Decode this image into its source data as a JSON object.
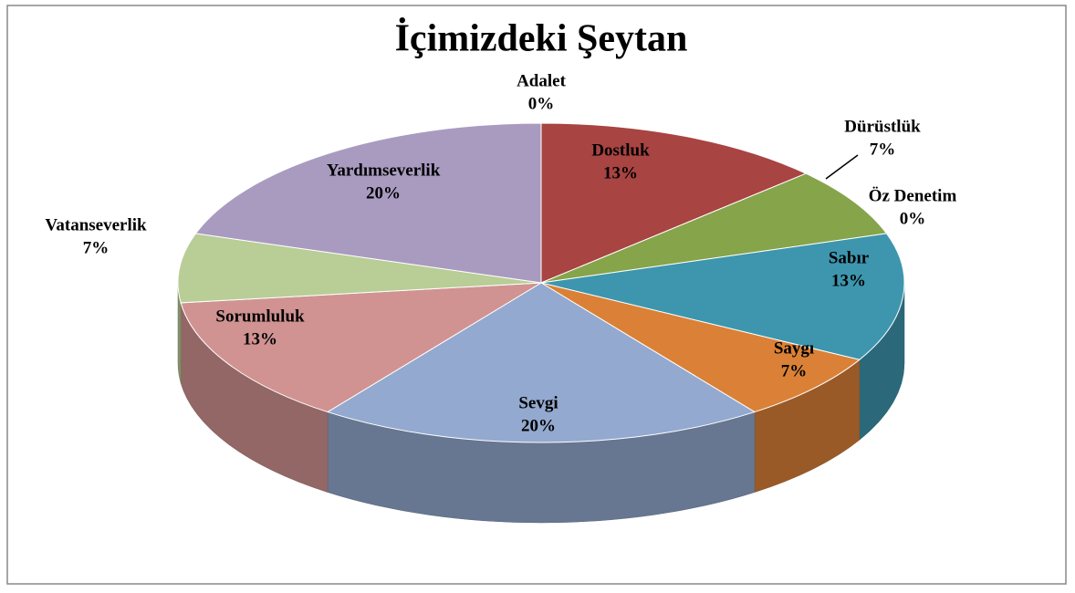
{
  "chart_data": {
    "type": "pie3d",
    "title": "İçimizdeki Şeytan",
    "categories": [
      "Adalet",
      "Dostluk",
      "Dürüstlük",
      "Öz Denetim",
      "Sabır",
      "Saygı",
      "Sevgi",
      "Sorumluluk",
      "Vatanseverlik",
      "Yardımseverlik"
    ],
    "values": [
      0,
      13,
      7,
      0,
      13,
      7,
      20,
      13,
      7,
      20
    ],
    "value_labels": [
      "0%",
      "13%",
      "7%",
      "0%",
      "13%",
      "7%",
      "20%",
      "13%",
      "7%",
      "20%"
    ],
    "colors": [
      "#4f81bd",
      "#a84442",
      "#86a44a",
      "#8064a2",
      "#3d96ae",
      "#da8137",
      "#93a9cf",
      "#d09392",
      "#b9cd96",
      "#a99bc0"
    ]
  }
}
